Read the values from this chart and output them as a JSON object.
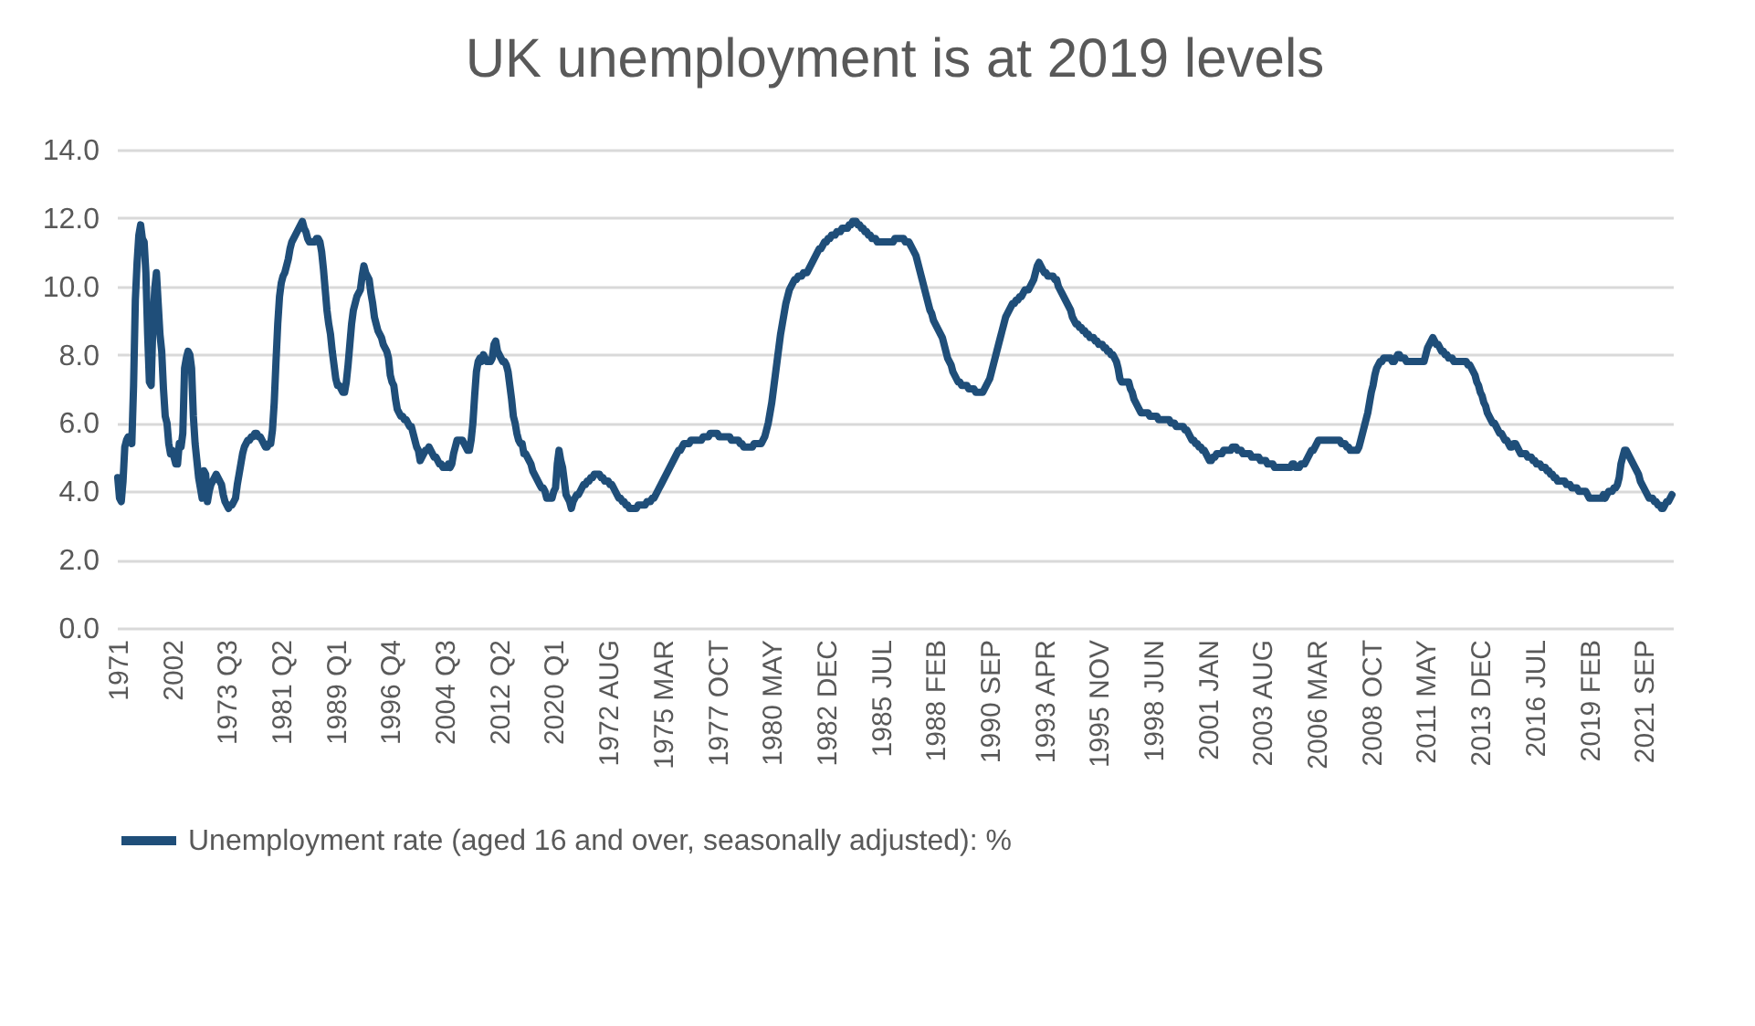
{
  "chart_data": {
    "type": "line",
    "title": "UK unemployment is at 2019 levels",
    "categories": [
      "1971",
      null,
      null,
      null,
      null,
      null,
      null,
      null,
      null,
      null,
      null,
      null,
      null,
      null,
      null,
      null,
      null,
      null,
      null,
      null,
      null,
      null,
      null,
      null,
      null,
      null,
      null,
      null,
      null,
      null,
      null,
      "2002",
      null,
      null,
      null,
      null,
      null,
      null,
      null,
      null,
      null,
      null,
      null,
      null,
      null,
      null,
      null,
      null,
      null,
      null,
      null,
      null,
      null,
      null,
      null,
      null,
      null,
      null,
      null,
      null,
      null,
      null,
      "1973 Q3",
      null,
      null,
      null,
      null,
      null,
      null,
      null,
      null,
      null,
      null,
      null,
      null,
      null,
      null,
      null,
      null,
      null,
      null,
      null,
      null,
      null,
      null,
      null,
      null,
      null,
      null,
      null,
      null,
      null,
      null,
      "1981 Q2",
      null,
      null,
      null,
      null,
      null,
      null,
      null,
      null,
      null,
      null,
      null,
      null,
      null,
      null,
      null,
      null,
      null,
      null,
      null,
      null,
      null,
      null,
      null,
      null,
      null,
      null,
      null,
      null,
      null,
      null,
      "1989 Q1",
      null,
      null,
      null,
      null,
      null,
      null,
      null,
      null,
      null,
      null,
      null,
      null,
      null,
      null,
      null,
      null,
      null,
      null,
      null,
      null,
      null,
      null,
      null,
      null,
      null,
      null,
      null,
      null,
      null,
      null,
      "1996 Q4",
      null,
      null,
      null,
      null,
      null,
      null,
      null,
      null,
      null,
      null,
      null,
      null,
      null,
      null,
      null,
      null,
      null,
      null,
      null,
      null,
      null,
      null,
      null,
      null,
      null,
      null,
      null,
      null,
      null,
      null,
      "2004 Q3",
      null,
      null,
      null,
      null,
      null,
      null,
      null,
      null,
      null,
      null,
      null,
      null,
      null,
      null,
      null,
      null,
      null,
      null,
      null,
      null,
      null,
      null,
      null,
      null,
      null,
      null,
      null,
      null,
      null,
      null,
      "2012 Q2",
      null,
      null,
      null,
      null,
      null,
      null,
      null,
      null,
      null,
      null,
      null,
      null,
      null,
      null,
      null,
      null,
      null,
      null,
      null,
      null,
      null,
      null,
      null,
      null,
      null,
      null,
      null,
      null,
      null,
      null,
      "2020 Q1",
      null,
      null,
      null,
      null,
      null,
      null,
      null,
      null,
      null,
      null,
      null,
      null,
      null,
      null,
      null,
      null,
      null,
      null,
      null,
      null,
      null,
      null,
      null,
      null,
      null,
      null,
      null,
      null,
      null,
      null,
      "1972 AUG",
      null,
      null,
      null,
      null,
      null,
      null,
      null,
      null,
      null,
      null,
      null,
      null,
      null,
      null,
      null,
      null,
      null,
      null,
      null,
      null,
      null,
      null,
      null,
      null,
      null,
      null,
      null,
      null,
      null,
      null,
      "1975 MAR",
      null,
      null,
      null,
      null,
      null,
      null,
      null,
      null,
      null,
      null,
      null,
      null,
      null,
      null,
      null,
      null,
      null,
      null,
      null,
      null,
      null,
      null,
      null,
      null,
      null,
      null,
      null,
      null,
      null,
      null,
      "1977 OCT",
      null,
      null,
      null,
      null,
      null,
      null,
      null,
      null,
      null,
      null,
      null,
      null,
      null,
      null,
      null,
      null,
      null,
      null,
      null,
      null,
      null,
      null,
      null,
      null,
      null,
      null,
      null,
      null,
      null,
      null,
      "1980 MAY",
      null,
      null,
      null,
      null,
      null,
      null,
      null,
      null,
      null,
      null,
      null,
      null,
      null,
      null,
      null,
      null,
      null,
      null,
      null,
      null,
      null,
      null,
      null,
      null,
      null,
      null,
      null,
      null,
      null,
      null,
      "1982 DEC",
      null,
      null,
      null,
      null,
      null,
      null,
      null,
      null,
      null,
      null,
      null,
      null,
      null,
      null,
      null,
      null,
      null,
      null,
      null,
      null,
      null,
      null,
      null,
      null,
      null,
      null,
      null,
      null,
      null,
      null,
      "1985 JUL",
      null,
      null,
      null,
      null,
      null,
      null,
      null,
      null,
      null,
      null,
      null,
      null,
      null,
      null,
      null,
      null,
      null,
      null,
      null,
      null,
      null,
      null,
      null,
      null,
      null,
      null,
      null,
      null,
      null,
      null,
      "1988 FEB",
      null,
      null,
      null,
      null,
      null,
      null,
      null,
      null,
      null,
      null,
      null,
      null,
      null,
      null,
      null,
      null,
      null,
      null,
      null,
      null,
      null,
      null,
      null,
      null,
      null,
      null,
      null,
      null,
      null,
      null,
      "1990 SEP",
      null,
      null,
      null,
      null,
      null,
      null,
      null,
      null,
      null,
      null,
      null,
      null,
      null,
      null,
      null,
      null,
      null,
      null,
      null,
      null,
      null,
      null,
      null,
      null,
      null,
      null,
      null,
      null,
      null,
      null,
      "1993 APR",
      null,
      null,
      null,
      null,
      null,
      null,
      null,
      null,
      null,
      null,
      null,
      null,
      null,
      null,
      null,
      null,
      null,
      null,
      null,
      null,
      null,
      null,
      null,
      null,
      null,
      null,
      null,
      null,
      null,
      null,
      "1995 NOV",
      null,
      null,
      null,
      null,
      null,
      null,
      null,
      null,
      null,
      null,
      null,
      null,
      null,
      null,
      null,
      null,
      null,
      null,
      null,
      null,
      null,
      null,
      null,
      null,
      null,
      null,
      null,
      null,
      null,
      null,
      "1998 JUN",
      null,
      null,
      null,
      null,
      null,
      null,
      null,
      null,
      null,
      null,
      null,
      null,
      null,
      null,
      null,
      null,
      null,
      null,
      null,
      null,
      null,
      null,
      null,
      null,
      null,
      null,
      null,
      null,
      null,
      null,
      "2001 JAN",
      null,
      null,
      null,
      null,
      null,
      null,
      null,
      null,
      null,
      null,
      null,
      null,
      null,
      null,
      null,
      null,
      null,
      null,
      null,
      null,
      null,
      null,
      null,
      null,
      null,
      null,
      null,
      null,
      null,
      null,
      "2003 AUG",
      null,
      null,
      null,
      null,
      null,
      null,
      null,
      null,
      null,
      null,
      null,
      null,
      null,
      null,
      null,
      null,
      null,
      null,
      null,
      null,
      null,
      null,
      null,
      null,
      null,
      null,
      null,
      null,
      null,
      null,
      "2006 MAR",
      null,
      null,
      null,
      null,
      null,
      null,
      null,
      null,
      null,
      null,
      null,
      null,
      null,
      null,
      null,
      null,
      null,
      null,
      null,
      null,
      null,
      null,
      null,
      null,
      null,
      null,
      null,
      null,
      null,
      null,
      "2008 OCT",
      null,
      null,
      null,
      null,
      null,
      null,
      null,
      null,
      null,
      null,
      null,
      null,
      null,
      null,
      null,
      null,
      null,
      null,
      null,
      null,
      null,
      null,
      null,
      null,
      null,
      null,
      null,
      null,
      null,
      null,
      "2011 MAY",
      null,
      null,
      null,
      null,
      null,
      null,
      null,
      null,
      null,
      null,
      null,
      null,
      null,
      null,
      null,
      null,
      null,
      null,
      null,
      null,
      null,
      null,
      null,
      null,
      null,
      null,
      null,
      null,
      null,
      null,
      "2013 DEC",
      null,
      null,
      null,
      null,
      null,
      null,
      null,
      null,
      null,
      null,
      null,
      null,
      null,
      null,
      null,
      null,
      null,
      null,
      null,
      null,
      null,
      null,
      null,
      null,
      null,
      null,
      null,
      null,
      null,
      null,
      "2016 JUL",
      null,
      null,
      null,
      null,
      null,
      null,
      null,
      null,
      null,
      null,
      null,
      null,
      null,
      null,
      null,
      null,
      null,
      null,
      null,
      null,
      null,
      null,
      null,
      null,
      null,
      null,
      null,
      null,
      null,
      null,
      "2019 FEB",
      null,
      null,
      null,
      null,
      null,
      null,
      null,
      null,
      null,
      null,
      null,
      null,
      null,
      null,
      null,
      null,
      null,
      null,
      null,
      null,
      null,
      null,
      null,
      null,
      null,
      null,
      null,
      null,
      null,
      null,
      "2021 SEP",
      null,
      null,
      null,
      null,
      null,
      null,
      null,
      null,
      null,
      null,
      null,
      null,
      null,
      null,
      null,
      null
    ],
    "series": [
      {
        "name": "Unemployment rate (aged 16 and over, seasonally adjusted): %",
        "color": "#1f4e79",
        "values": [
          4.4,
          3.8,
          3.7,
          4.3,
          5.3,
          5.5,
          5.6,
          5.6,
          5.4,
          7.1,
          9.6,
          10.7,
          11.5,
          11.8,
          11.4,
          11.3,
          10.4,
          8.6,
          7.2,
          7.1,
          8.9,
          9.9,
          10.4,
          9.5,
          8.6,
          8.1,
          7.0,
          6.2,
          6.0,
          5.4,
          5.1,
          5.2,
          5.0,
          4.8,
          4.8,
          5.4,
          5.3,
          5.7,
          7.6,
          7.9,
          8.1,
          8.0,
          7.6,
          6.2,
          5.4,
          4.9,
          4.4,
          4.1,
          3.8,
          4.6,
          4.5,
          3.7,
          4.0,
          4.2,
          4.3,
          4.4,
          4.5,
          4.4,
          4.3,
          4.2,
          3.9,
          3.7,
          3.6,
          3.5,
          3.6,
          3.6,
          3.7,
          3.8,
          4.2,
          4.5,
          4.8,
          5.1,
          5.3,
          5.4,
          5.5,
          5.5,
          5.6,
          5.6,
          5.7,
          5.7,
          5.6,
          5.6,
          5.5,
          5.4,
          5.3,
          5.3,
          5.4,
          5.4,
          5.8,
          6.6,
          7.8,
          8.9,
          9.7,
          10.1,
          10.3,
          10.4,
          10.6,
          10.8,
          11.1,
          11.3,
          11.4,
          11.5,
          11.6,
          11.7,
          11.8,
          11.9,
          11.7,
          11.6,
          11.4,
          11.3,
          11.3,
          11.3,
          11.3,
          11.4,
          11.4,
          11.3,
          11.0,
          10.5,
          9.9,
          9.3,
          8.9,
          8.6,
          8.1,
          7.7,
          7.3,
          7.1,
          7.1,
          7.0,
          6.9,
          6.9,
          7.2,
          7.7,
          8.3,
          8.9,
          9.3,
          9.5,
          9.7,
          9.8,
          9.9,
          10.3,
          10.6,
          10.4,
          10.3,
          10.2,
          9.8,
          9.5,
          9.1,
          8.9,
          8.7,
          8.6,
          8.5,
          8.3,
          8.2,
          8.1,
          7.9,
          7.4,
          7.2,
          7.1,
          6.7,
          6.4,
          6.3,
          6.2,
          6.2,
          6.1,
          6.1,
          6.0,
          5.9,
          5.9,
          5.7,
          5.5,
          5.3,
          5.2,
          4.9,
          5.0,
          5.1,
          5.2,
          5.2,
          5.3,
          5.2,
          5.1,
          5.0,
          5.0,
          4.9,
          4.8,
          4.8,
          4.7,
          4.7,
          4.7,
          4.8,
          4.7,
          4.8,
          5.1,
          5.3,
          5.5,
          5.5,
          5.5,
          5.5,
          5.4,
          5.3,
          5.2,
          5.2,
          5.5,
          6.0,
          6.8,
          7.5,
          7.8,
          7.9,
          7.8,
          8.0,
          7.9,
          7.8,
          7.8,
          7.8,
          7.9,
          8.3,
          8.4,
          8.1,
          8.0,
          7.9,
          7.8,
          7.8,
          7.7,
          7.5,
          7.1,
          6.7,
          6.2,
          6.0,
          5.7,
          5.5,
          5.4,
          5.4,
          5.1,
          5.1,
          5.0,
          4.9,
          4.8,
          4.6,
          4.5,
          4.4,
          4.3,
          4.2,
          4.1,
          4.1,
          4.0,
          3.8,
          3.8,
          3.8,
          3.8,
          4.0,
          4.1,
          4.8,
          5.2,
          4.9,
          4.7,
          4.3,
          3.9,
          3.8,
          3.7,
          3.5,
          3.7,
          3.8,
          3.9,
          3.9,
          4.0,
          4.1,
          4.2,
          4.2,
          4.3,
          4.3,
          4.4,
          4.4,
          4.5,
          4.5,
          4.5,
          4.5,
          4.4,
          4.4,
          4.3,
          4.3,
          4.3,
          4.2,
          4.2,
          4.1,
          4.0,
          3.9,
          3.8,
          3.8,
          3.7,
          3.7,
          3.6,
          3.6,
          3.5,
          3.5,
          3.5,
          3.5,
          3.5,
          3.6,
          3.6,
          3.6,
          3.6,
          3.6,
          3.7,
          3.7,
          3.7,
          3.8,
          3.8,
          3.9,
          4.0,
          4.1,
          4.2,
          4.3,
          4.4,
          4.5,
          4.6,
          4.7,
          4.8,
          4.9,
          5.0,
          5.1,
          5.2,
          5.2,
          5.3,
          5.4,
          5.4,
          5.4,
          5.4,
          5.5,
          5.5,
          5.5,
          5.5,
          5.5,
          5.5,
          5.5,
          5.6,
          5.6,
          5.6,
          5.6,
          5.7,
          5.7,
          5.7,
          5.7,
          5.7,
          5.6,
          5.6,
          5.6,
          5.6,
          5.6,
          5.6,
          5.6,
          5.5,
          5.5,
          5.5,
          5.5,
          5.5,
          5.4,
          5.4,
          5.3,
          5.3,
          5.3,
          5.3,
          5.3,
          5.3,
          5.4,
          5.4,
          5.4,
          5.4,
          5.4,
          5.5,
          5.6,
          5.8,
          6.0,
          6.3,
          6.6,
          7.0,
          7.4,
          7.8,
          8.2,
          8.6,
          8.9,
          9.2,
          9.5,
          9.7,
          9.9,
          10.0,
          10.1,
          10.2,
          10.2,
          10.3,
          10.3,
          10.3,
          10.4,
          10.4,
          10.4,
          10.5,
          10.6,
          10.7,
          10.8,
          10.9,
          11.0,
          11.1,
          11.1,
          11.2,
          11.3,
          11.3,
          11.4,
          11.4,
          11.5,
          11.5,
          11.5,
          11.6,
          11.6,
          11.6,
          11.7,
          11.7,
          11.7,
          11.7,
          11.8,
          11.8,
          11.9,
          11.9,
          11.9,
          11.8,
          11.8,
          11.7,
          11.7,
          11.6,
          11.6,
          11.5,
          11.5,
          11.4,
          11.4,
          11.4,
          11.3,
          11.3,
          11.3,
          11.3,
          11.3,
          11.3,
          11.3,
          11.3,
          11.3,
          11.3,
          11.4,
          11.4,
          11.4,
          11.4,
          11.4,
          11.4,
          11.3,
          11.3,
          11.3,
          11.2,
          11.1,
          11.0,
          10.9,
          10.7,
          10.5,
          10.3,
          10.1,
          9.9,
          9.7,
          9.5,
          9.3,
          9.2,
          9.0,
          8.9,
          8.8,
          8.7,
          8.6,
          8.5,
          8.3,
          8.1,
          7.9,
          7.8,
          7.7,
          7.5,
          7.4,
          7.3,
          7.2,
          7.2,
          7.1,
          7.1,
          7.1,
          7.1,
          7.0,
          7.0,
          7.0,
          7.0,
          6.9,
          6.9,
          6.9,
          6.9,
          6.9,
          7.0,
          7.1,
          7.2,
          7.3,
          7.5,
          7.7,
          7.9,
          8.1,
          8.3,
          8.5,
          8.7,
          8.9,
          9.1,
          9.2,
          9.3,
          9.4,
          9.5,
          9.5,
          9.6,
          9.6,
          9.7,
          9.7,
          9.8,
          9.9,
          9.9,
          9.9,
          10.0,
          10.1,
          10.2,
          10.4,
          10.6,
          10.7,
          10.6,
          10.5,
          10.4,
          10.4,
          10.3,
          10.3,
          10.3,
          10.3,
          10.2,
          10.2,
          10.0,
          9.9,
          9.8,
          9.7,
          9.6,
          9.5,
          9.4,
          9.3,
          9.1,
          9.0,
          8.9,
          8.9,
          8.8,
          8.8,
          8.7,
          8.7,
          8.6,
          8.6,
          8.5,
          8.5,
          8.5,
          8.4,
          8.4,
          8.3,
          8.3,
          8.3,
          8.2,
          8.2,
          8.1,
          8.1,
          8.0,
          8.0,
          7.9,
          7.8,
          7.6,
          7.3,
          7.2,
          7.2,
          7.2,
          7.2,
          7.2,
          7.0,
          6.9,
          6.7,
          6.6,
          6.5,
          6.4,
          6.3,
          6.3,
          6.3,
          6.3,
          6.3,
          6.2,
          6.2,
          6.2,
          6.2,
          6.2,
          6.1,
          6.1,
          6.1,
          6.1,
          6.1,
          6.1,
          6.1,
          6.0,
          6.0,
          6.0,
          5.9,
          5.9,
          5.9,
          5.9,
          5.9,
          5.8,
          5.8,
          5.7,
          5.6,
          5.5,
          5.5,
          5.4,
          5.4,
          5.3,
          5.3,
          5.2,
          5.2,
          5.1,
          5.0,
          4.9,
          4.9,
          5.0,
          5.0,
          5.1,
          5.1,
          5.1,
          5.1,
          5.2,
          5.2,
          5.2,
          5.2,
          5.2,
          5.3,
          5.3,
          5.3,
          5.2,
          5.2,
          5.2,
          5.1,
          5.1,
          5.1,
          5.1,
          5.1,
          5.0,
          5.0,
          5.0,
          5.0,
          5.0,
          4.9,
          4.9,
          4.9,
          4.9,
          4.8,
          4.8,
          4.8,
          4.8,
          4.7,
          4.7,
          4.7,
          4.7,
          4.7,
          4.7,
          4.7,
          4.7,
          4.7,
          4.7,
          4.8,
          4.8,
          4.7,
          4.7,
          4.7,
          4.8,
          4.8,
          4.8,
          4.9,
          5.0,
          5.1,
          5.2,
          5.2,
          5.3,
          5.4,
          5.5,
          5.5,
          5.5,
          5.5,
          5.5,
          5.5,
          5.5,
          5.5,
          5.5,
          5.5,
          5.5,
          5.5,
          5.5,
          5.4,
          5.4,
          5.4,
          5.3,
          5.3,
          5.2,
          5.2,
          5.2,
          5.2,
          5.2,
          5.3,
          5.5,
          5.7,
          5.9,
          6.1,
          6.3,
          6.6,
          6.9,
          7.1,
          7.4,
          7.6,
          7.7,
          7.8,
          7.8,
          7.9,
          7.9,
          7.9,
          7.9,
          7.9,
          7.8,
          7.8,
          7.9,
          8.0,
          8.0,
          7.9,
          7.9,
          7.9,
          7.8,
          7.8,
          7.8,
          7.8,
          7.8,
          7.8,
          7.8,
          7.8,
          7.8,
          7.8,
          7.8,
          8.0,
          8.2,
          8.3,
          8.4,
          8.5,
          8.4,
          8.3,
          8.3,
          8.2,
          8.1,
          8.1,
          8.0,
          8.0,
          7.9,
          7.9,
          7.9,
          7.8,
          7.8,
          7.8,
          7.8,
          7.8,
          7.8,
          7.8,
          7.8,
          7.7,
          7.7,
          7.6,
          7.5,
          7.4,
          7.2,
          7.1,
          6.9,
          6.8,
          6.6,
          6.5,
          6.3,
          6.2,
          6.1,
          6.0,
          6.0,
          5.9,
          5.8,
          5.7,
          5.7,
          5.6,
          5.5,
          5.5,
          5.4,
          5.3,
          5.3,
          5.4,
          5.4,
          5.3,
          5.2,
          5.1,
          5.1,
          5.1,
          5.1,
          5.0,
          5.0,
          5.0,
          4.9,
          4.9,
          4.8,
          4.8,
          4.8,
          4.7,
          4.7,
          4.7,
          4.6,
          4.6,
          4.5,
          4.5,
          4.4,
          4.4,
          4.3,
          4.3,
          4.3,
          4.3,
          4.3,
          4.2,
          4.2,
          4.2,
          4.1,
          4.1,
          4.1,
          4.1,
          4.0,
          4.0,
          4.0,
          4.0,
          4.0,
          3.9,
          3.8,
          3.8,
          3.8,
          3.8,
          3.8,
          3.8,
          3.8,
          3.8,
          3.9,
          3.8,
          3.9,
          4.0,
          4.0,
          4.0,
          4.1,
          4.1,
          4.2,
          4.4,
          4.8,
          5.0,
          5.2,
          5.2,
          5.1,
          5.0,
          4.9,
          4.8,
          4.7,
          4.6,
          4.5,
          4.3,
          4.2,
          4.1,
          4.0,
          3.9,
          3.8,
          3.8,
          3.8,
          3.7,
          3.7,
          3.6,
          3.6,
          3.5,
          3.5,
          3.6,
          3.7,
          3.7,
          3.8,
          3.9
        ]
      }
    ],
    "ylim": [
      0,
      14
    ],
    "yticks": [
      {
        "value": 0,
        "label": "0.0"
      },
      {
        "value": 2,
        "label": "2.0"
      },
      {
        "value": 4,
        "label": "4.0"
      },
      {
        "value": 6,
        "label": "6.0"
      },
      {
        "value": 8,
        "label": "8.0"
      },
      {
        "value": 10,
        "label": "10.0"
      },
      {
        "value": 12,
        "label": "12.0"
      },
      {
        "value": 14,
        "label": "14.0"
      }
    ],
    "grid": "y",
    "legend": "bottom"
  }
}
